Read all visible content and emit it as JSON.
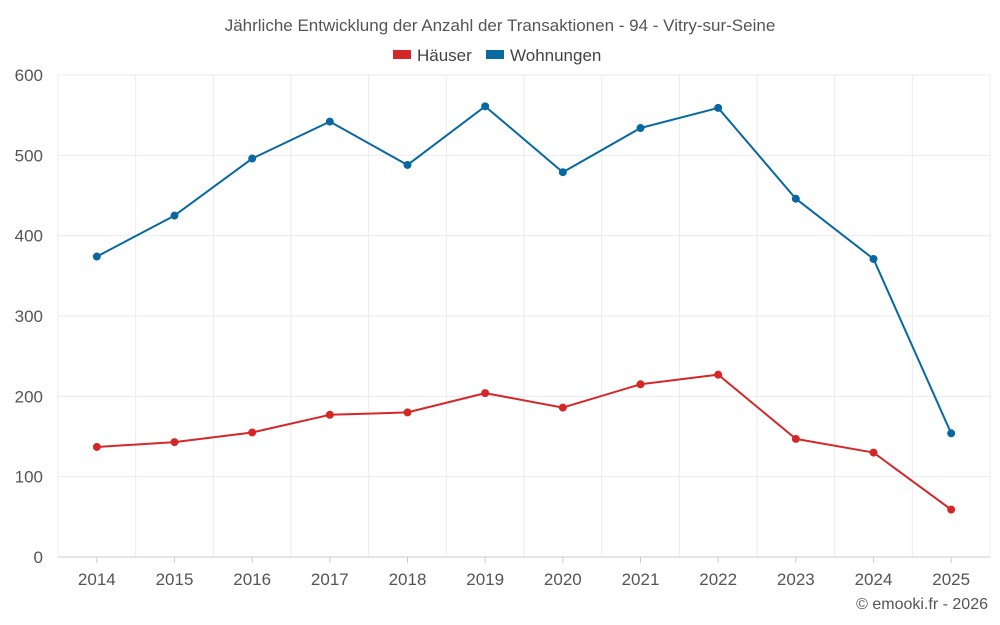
{
  "chart_data": {
    "type": "line",
    "title": "Jährliche Entwicklung der Anzahl der Transaktionen - 94 - Vitry-sur-Seine",
    "categories": [
      "2014",
      "2015",
      "2016",
      "2017",
      "2018",
      "2019",
      "2020",
      "2021",
      "2022",
      "2023",
      "2024",
      "2025"
    ],
    "series": [
      {
        "name": "Häuser",
        "color": "#d62728",
        "values": [
          137,
          143,
          155,
          177,
          180,
          204,
          186,
          215,
          227,
          147,
          130,
          59
        ]
      },
      {
        "name": "Wohnungen",
        "color": "#0868a0",
        "values": [
          374,
          425,
          496,
          542,
          488,
          561,
          479,
          534,
          559,
          446,
          371,
          154
        ]
      }
    ],
    "ylim": [
      0,
      600
    ],
    "yticks": [
      0,
      100,
      200,
      300,
      400,
      500,
      600
    ],
    "xlabel": "",
    "ylabel": "",
    "grid": true,
    "legend_position": "top-center",
    "credit": "© emooki.fr - 2026"
  }
}
